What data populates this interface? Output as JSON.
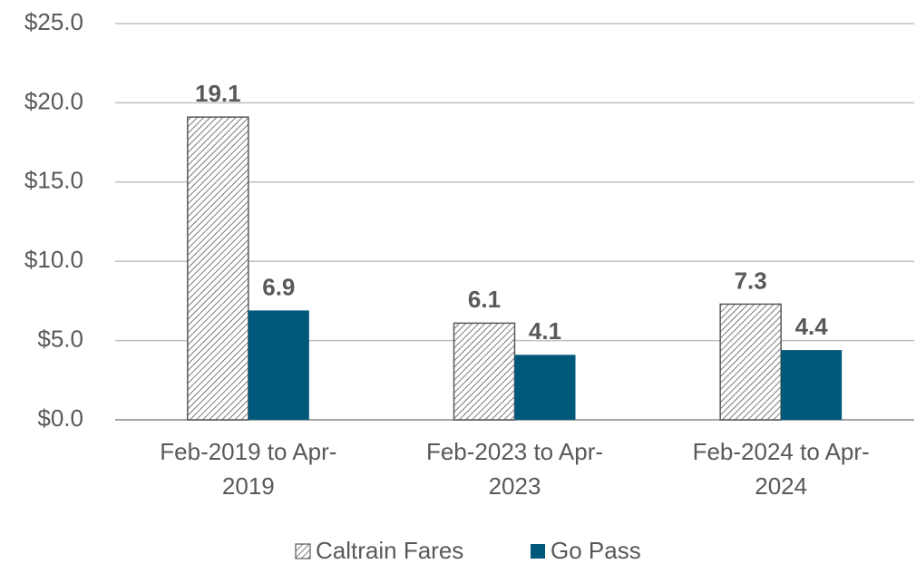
{
  "chart_data": {
    "type": "bar",
    "categories": [
      "Feb-2019 to Apr-2019",
      "Feb-2023 to Apr-2023",
      "Feb-2024 to Apr-2024"
    ],
    "series": [
      {
        "name": "Caltrain Fares",
        "color": "#595959",
        "pattern": "hatch",
        "values": [
          19.1,
          6.1,
          7.3
        ]
      },
      {
        "name": "Go Pass",
        "color": "#00587a",
        "values": [
          6.9,
          4.1,
          4.4
        ]
      }
    ],
    "ylim": [
      0,
      25
    ],
    "yticks": [
      {
        "value": 0,
        "label": "$0.0"
      },
      {
        "value": 5,
        "label": "$5.0"
      },
      {
        "value": 10,
        "label": "$10.0"
      },
      {
        "value": 15,
        "label": "$15.0"
      },
      {
        "value": 20,
        "label": "$20.0"
      },
      {
        "value": 25,
        "label": "$25.0"
      }
    ],
    "grid": true,
    "legend": "bottom"
  }
}
